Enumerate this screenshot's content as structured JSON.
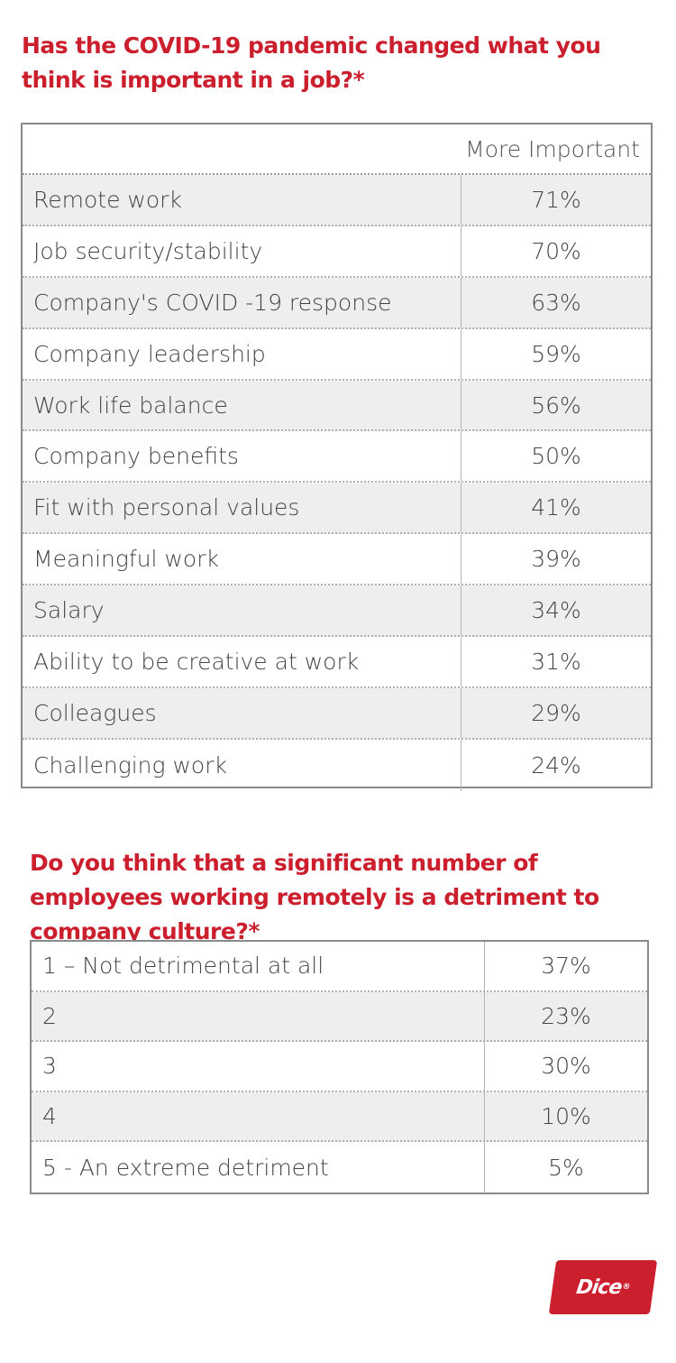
{
  "section1": {
    "title": "Has the COVID-19 pandemic changed what you think is important in a job?*",
    "column_header": "More Important",
    "rows": [
      {
        "label": "Remote work",
        "value": "71%"
      },
      {
        "label": "Job security/stability",
        "value": "70%"
      },
      {
        "label": "Company's COVID -19 response",
        "value": "63%"
      },
      {
        "label": "Company leadership",
        "value": "59%"
      },
      {
        "label": "Work life balance",
        "value": "56%"
      },
      {
        "label": "Company benefits",
        "value": "50%"
      },
      {
        "label": "Fit with personal values",
        "value": "41%"
      },
      {
        "label": "Meaningful work",
        "value": "39%"
      },
      {
        "label": "Salary",
        "value": "34%"
      },
      {
        "label": "Ability to be creative at work",
        "value": "31%"
      },
      {
        "label": "Colleagues",
        "value": "29%"
      },
      {
        "label": "Challenging work",
        "value": "24%"
      }
    ]
  },
  "section2": {
    "title": "Do you think that a significant number of employees working remotely is a detriment to company culture?*",
    "rows": [
      {
        "label": "1 – Not detrimental at all",
        "value": "37%"
      },
      {
        "label": "2",
        "value": "23%"
      },
      {
        "label": "3",
        "value": "30%"
      },
      {
        "label": "4",
        "value": "10%"
      },
      {
        "label": "5 - An extreme detriment",
        "value": "5%"
      }
    ]
  },
  "logo": {
    "text": "Dice",
    "mark": "®"
  },
  "colors": {
    "accent": "#cc1f2d",
    "alt_row": "#eeeeee",
    "text": "#444444"
  }
}
